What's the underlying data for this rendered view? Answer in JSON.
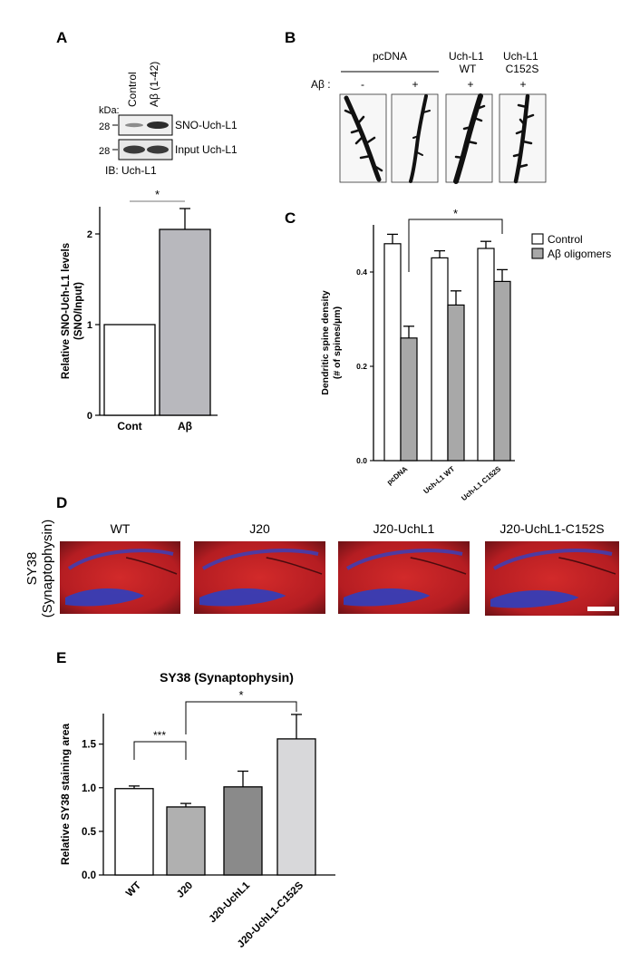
{
  "panels": {
    "A": {
      "letter": "A",
      "lane_labels": [
        "Control",
        "Aβ (1-42)"
      ],
      "kda_label": "kDa:",
      "marker_top": "28",
      "marker_bottom": "28",
      "band_label_top": "SNO-Uch-L1",
      "band_label_bottom": "Input Uch-L1",
      "ib_label": "IB: Uch-L1"
    },
    "B": {
      "letter": "B",
      "group_labels": [
        "pcDNA",
        "Uch-L1 WT",
        "Uch-L1 C152S"
      ],
      "ab_label": "Aβ :",
      "treatment": [
        "-",
        "+",
        "+",
        "+"
      ]
    },
    "C": {
      "letter": "C"
    },
    "D": {
      "letter": "D",
      "row_label": [
        "SY38",
        "(Synaptophysin)"
      ],
      "image_labels": [
        "WT",
        "J20",
        "J20-UchL1",
        "J20-UchL1-C152S"
      ]
    },
    "E": {
      "letter": "E"
    }
  },
  "chart_data": [
    {
      "id": "A",
      "type": "bar",
      "categories": [
        "Cont",
        "Aβ"
      ],
      "values": [
        1.0,
        2.05
      ],
      "errors": [
        0,
        0.23
      ],
      "ylabel": "Relative SNO-Uch-L1 levels (SNO/Input)",
      "ylabel_lines": [
        "Relative SNO-Uch-L1 levels",
        "(SNO/Input)"
      ],
      "ylim": [
        0,
        2.3
      ],
      "yticks": [
        0,
        1,
        2
      ],
      "significance": [
        {
          "from": 0,
          "to": 1,
          "label": "*"
        }
      ],
      "colors": [
        "#ffffff",
        "#b8b8bd"
      ]
    },
    {
      "id": "C",
      "type": "bar",
      "categories": [
        "pcDNA",
        "Uch-L1 WT",
        "Uch-L1 C152S"
      ],
      "series": [
        {
          "name": "Control",
          "values": [
            0.46,
            0.43,
            0.45
          ],
          "errors": [
            0.02,
            0.015,
            0.015
          ],
          "color": "#ffffff"
        },
        {
          "name": "Aβ oligomers",
          "values": [
            0.26,
            0.33,
            0.38
          ],
          "errors": [
            0.025,
            0.03,
            0.025
          ],
          "color": "#a8a8a8"
        }
      ],
      "ylabel": "Dendritic spine density (# of spines/µm)",
      "ylabel_lines": [
        "Dendritic spine density",
        "(# of spines/µm)"
      ],
      "ylim": [
        0,
        0.5
      ],
      "yticks": [
        "0.0",
        "0.2",
        "0.4"
      ],
      "significance": [
        {
          "from": "pcDNA-Aβ",
          "to": "Uch-L1 C152S-Aβ",
          "label": "*"
        }
      ],
      "legend": "top-right"
    },
    {
      "id": "E",
      "type": "bar",
      "title": "SY38 (Synaptophysin)",
      "categories": [
        "WT",
        "J20",
        "J20-UchL1",
        "J20-UchL1-C152S"
      ],
      "values": [
        0.99,
        0.78,
        1.01,
        1.56
      ],
      "errors": [
        0.03,
        0.04,
        0.18,
        0.28
      ],
      "ylabel": "Relative SY38 staining area",
      "ylim": [
        0,
        1.85
      ],
      "yticks": [
        "0.0",
        "0.5",
        "1.0",
        "1.5"
      ],
      "significance": [
        {
          "from": 0,
          "to": 1,
          "label": "***"
        },
        {
          "from": 1,
          "to": 3,
          "label": "*"
        }
      ],
      "colors": [
        "#ffffff",
        "#b0b0b0",
        "#8a8a8a",
        "#d8d8da"
      ]
    }
  ]
}
